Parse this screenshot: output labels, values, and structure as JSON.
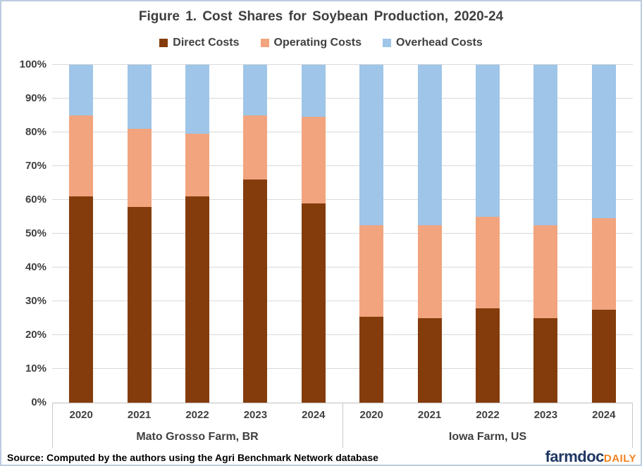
{
  "title": "Figure 1. Cost Shares for Soybean Production, 2020-24",
  "source_note": "Source: Computed by the authors using the Agri Benchmark Network database",
  "logo": {
    "primary": "farmdoc",
    "secondary": "DAILY"
  },
  "colors": {
    "direct": "#843c0c",
    "operating": "#f2a47e",
    "overhead": "#9fc5e8",
    "text": "#404040",
    "gridline": "#d9d9d9",
    "frame_border": "#bccce0",
    "logo_primary": "#1f3864",
    "logo_secondary": "#f5821f"
  },
  "chart_data": {
    "type": "bar",
    "stacked": true,
    "percent": true,
    "title": "Figure 1. Cost Shares for Soybean Production, 2020-24",
    "ylim": [
      0,
      100
    ],
    "yticks": [
      "0%",
      "10%",
      "20%",
      "30%",
      "40%",
      "50%",
      "60%",
      "70%",
      "80%",
      "90%",
      "100%"
    ],
    "grid": true,
    "legend_position": "top",
    "groups": [
      {
        "key": "mato_grosso",
        "label": "Mato Grosso Farm, BR",
        "years": [
          "2020",
          "2021",
          "2022",
          "2023",
          "2024"
        ]
      },
      {
        "key": "iowa",
        "label": "Iowa Farm, US",
        "years": [
          "2020",
          "2021",
          "2022",
          "2023",
          "2024"
        ]
      }
    ],
    "series": [
      {
        "name": "Direct Costs",
        "color": "#843c0c",
        "values": {
          "mato_grosso": [
            61,
            58,
            61,
            66,
            59
          ],
          "iowa": [
            25.5,
            25,
            28,
            25,
            27.5
          ]
        }
      },
      {
        "name": "Operating Costs",
        "color": "#f2a47e",
        "values": {
          "mato_grosso": [
            24,
            23,
            18.5,
            19,
            25.5
          ],
          "iowa": [
            27,
            27.5,
            27,
            27.5,
            27
          ]
        }
      },
      {
        "name": "Overhead Costs",
        "color": "#9fc5e8",
        "values": {
          "mato_grosso": [
            15,
            19,
            20.5,
            15,
            15.5
          ],
          "iowa": [
            47.5,
            47.5,
            45,
            47.5,
            45.5
          ]
        }
      }
    ]
  }
}
